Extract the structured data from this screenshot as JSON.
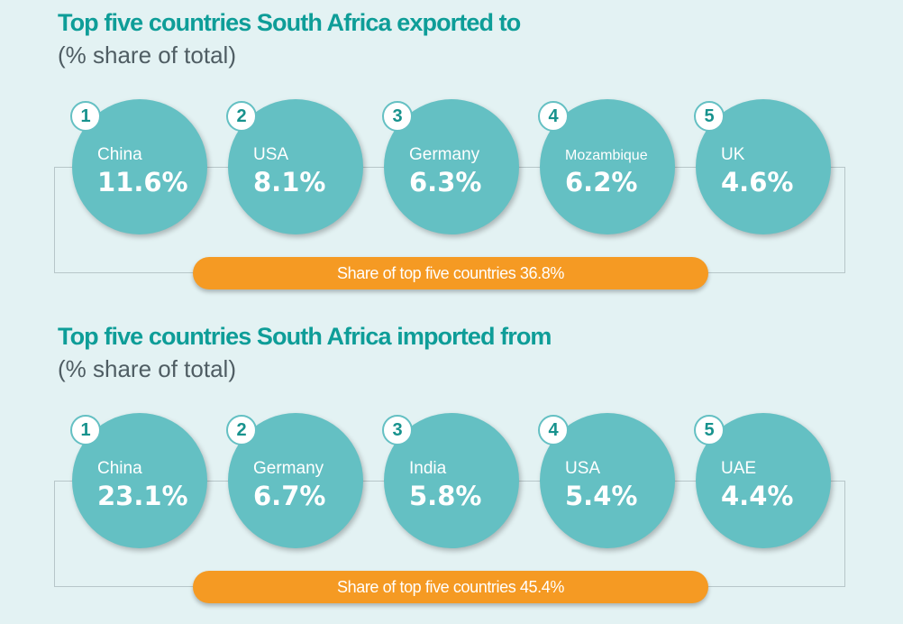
{
  "exports": {
    "title": "Top five countries South Africa exported to",
    "subtitle": "(% share of total)",
    "items": [
      {
        "rank": "1",
        "country": "China",
        "share": "11.6%"
      },
      {
        "rank": "2",
        "country": "USA",
        "share": "8.1%"
      },
      {
        "rank": "3",
        "country": "Germany",
        "share": "6.3%"
      },
      {
        "rank": "4",
        "country": "Mozambique",
        "share": "6.2%"
      },
      {
        "rank": "5",
        "country": "UK",
        "share": "4.6%"
      }
    ],
    "total_label": "Share of top five countries 36.8%"
  },
  "imports": {
    "title": "Top five countries South Africa imported from",
    "subtitle": "(% share of total)",
    "items": [
      {
        "rank": "1",
        "country": "China",
        "share": "23.1%"
      },
      {
        "rank": "2",
        "country": "Germany",
        "share": "6.7%"
      },
      {
        "rank": "3",
        "country": "India",
        "share": "5.8%"
      },
      {
        "rank": "4",
        "country": "USA",
        "share": "5.4%"
      },
      {
        "rank": "5",
        "country": "UAE",
        "share": "4.4%"
      }
    ],
    "total_label": "Share of top five countries 45.4%"
  },
  "colors": {
    "background": "#e3f2f3",
    "title": "#0e9d98",
    "circle": "#64c0c3",
    "pill": "#f59a23"
  }
}
